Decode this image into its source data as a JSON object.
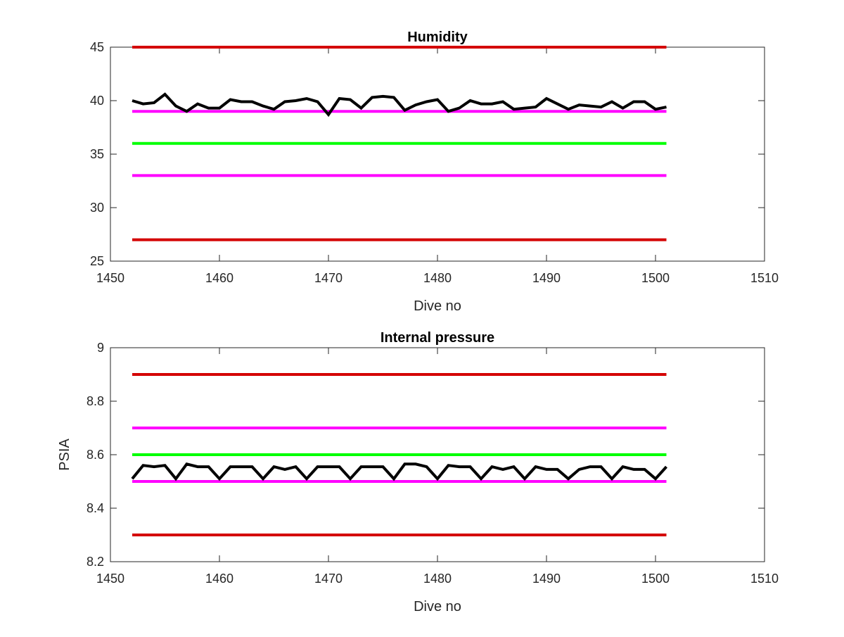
{
  "chart_data": [
    {
      "type": "line",
      "title": "Humidity",
      "xlabel": "Dive no",
      "ylabel": "",
      "xlim": [
        1450,
        1510
      ],
      "ylim": [
        25,
        45
      ],
      "xticks": [
        "1450",
        "1460",
        "1470",
        "1480",
        "1490",
        "1500",
        "1510"
      ],
      "yticks": [
        "25",
        "30",
        "35",
        "40",
        "45"
      ],
      "grid": false,
      "thresholds": [
        {
          "y": 45,
          "x": [
            1452,
            1501
          ],
          "color": "#d40000"
        },
        {
          "y": 39,
          "x": [
            1452,
            1501
          ],
          "color": "#ff00ff"
        },
        {
          "y": 36,
          "x": [
            1452,
            1501
          ],
          "color": "#00ff00"
        },
        {
          "y": 33,
          "x": [
            1452,
            1501
          ],
          "color": "#ff00ff"
        },
        {
          "y": 27,
          "x": [
            1452,
            1501
          ],
          "color": "#d40000"
        }
      ],
      "series": [
        {
          "color": "#000000",
          "x": [
            1452,
            1453,
            1454,
            1455,
            1456,
            1457,
            1458,
            1459,
            1460,
            1461,
            1462,
            1463,
            1464,
            1465,
            1466,
            1467,
            1468,
            1469,
            1470,
            1471,
            1472,
            1473,
            1474,
            1475,
            1476,
            1477,
            1478,
            1479,
            1480,
            1481,
            1482,
            1483,
            1484,
            1485,
            1486,
            1487,
            1488,
            1489,
            1490,
            1491,
            1492,
            1493,
            1494,
            1495,
            1496,
            1497,
            1498,
            1499,
            1500,
            1501
          ],
          "values": [
            40.0,
            39.7,
            39.8,
            40.6,
            39.5,
            39.0,
            39.7,
            39.3,
            39.3,
            40.1,
            39.9,
            39.9,
            39.5,
            39.2,
            39.9,
            40.0,
            40.2,
            39.9,
            38.7,
            40.2,
            40.1,
            39.3,
            40.3,
            40.4,
            40.3,
            39.1,
            39.6,
            39.9,
            40.1,
            39.0,
            39.3,
            40.0,
            39.7,
            39.7,
            39.9,
            39.2,
            39.3,
            39.4,
            40.2,
            39.7,
            39.2,
            39.6,
            39.5,
            39.4,
            39.9,
            39.3,
            39.9,
            39.9,
            39.2,
            39.4
          ]
        }
      ]
    },
    {
      "type": "line",
      "title": "Internal pressure",
      "xlabel": "Dive no",
      "ylabel": "PSIA",
      "xlim": [
        1450,
        1510
      ],
      "ylim": [
        8.2,
        9.0
      ],
      "xticks": [
        "1450",
        "1460",
        "1470",
        "1480",
        "1490",
        "1500",
        "1510"
      ],
      "yticks": [
        "8.2",
        "8.4",
        "8.6",
        "8.8",
        "9"
      ],
      "grid": false,
      "thresholds": [
        {
          "y": 8.9,
          "x": [
            1452,
            1501
          ],
          "color": "#d40000"
        },
        {
          "y": 8.7,
          "x": [
            1452,
            1501
          ],
          "color": "#ff00ff"
        },
        {
          "y": 8.6,
          "x": [
            1452,
            1501
          ],
          "color": "#00ff00"
        },
        {
          "y": 8.5,
          "x": [
            1452,
            1501
          ],
          "color": "#ff00ff"
        },
        {
          "y": 8.3,
          "x": [
            1452,
            1501
          ],
          "color": "#d40000"
        }
      ],
      "series": [
        {
          "color": "#000000",
          "x": [
            1452,
            1453,
            1454,
            1455,
            1456,
            1457,
            1458,
            1459,
            1460,
            1461,
            1462,
            1463,
            1464,
            1465,
            1466,
            1467,
            1468,
            1469,
            1470,
            1471,
            1472,
            1473,
            1474,
            1475,
            1476,
            1477,
            1478,
            1479,
            1480,
            1481,
            1482,
            1483,
            1484,
            1485,
            1486,
            1487,
            1488,
            1489,
            1490,
            1491,
            1492,
            1493,
            1494,
            1495,
            1496,
            1497,
            1498,
            1499,
            1500,
            1501
          ],
          "values": [
            8.51,
            8.56,
            8.555,
            8.56,
            8.51,
            8.565,
            8.555,
            8.555,
            8.51,
            8.555,
            8.555,
            8.555,
            8.51,
            8.555,
            8.545,
            8.555,
            8.51,
            8.555,
            8.555,
            8.555,
            8.51,
            8.555,
            8.555,
            8.555,
            8.51,
            8.565,
            8.565,
            8.555,
            8.51,
            8.56,
            8.555,
            8.555,
            8.51,
            8.555,
            8.545,
            8.555,
            8.51,
            8.555,
            8.545,
            8.545,
            8.51,
            8.545,
            8.555,
            8.555,
            8.51,
            8.555,
            8.545,
            8.545,
            8.51,
            8.555
          ]
        }
      ]
    }
  ]
}
